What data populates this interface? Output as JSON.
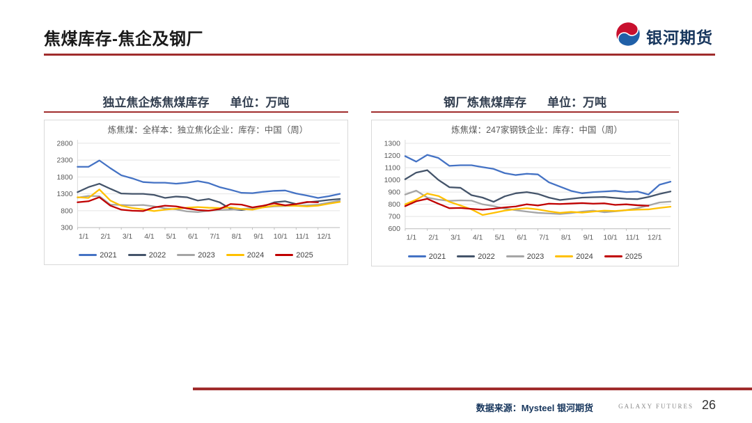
{
  "header": {
    "title": "焦煤库存-焦企及钢厂",
    "logo_text": "银河期货"
  },
  "footer": {
    "source": "数据来源：Mysteel 银河期货",
    "brand": "GALAXY FUTURES",
    "page_number": "26"
  },
  "colors": {
    "accent_red": "#A02C2C",
    "title_navy": "#333F50",
    "logo_navy": "#17365D",
    "logo_blue": "#2060A8",
    "logo_red": "#C8102E"
  },
  "chart_data": [
    {
      "type": "line",
      "section_title": "独立焦企炼焦煤库存",
      "unit_label": "单位：万吨",
      "title": "炼焦煤：全样本：独立焦化企业：库存：中国（周）",
      "ylabel": "万吨",
      "ylim": [
        300,
        2800
      ],
      "yticks": [
        300,
        800,
        1300,
        1800,
        2300,
        2800
      ],
      "x_tick_labels": [
        "1/1",
        "2/1",
        "3/1",
        "4/1",
        "5/1",
        "6/1",
        "7/1",
        "8/1",
        "9/1",
        "10/1",
        "11/1",
        "12/1"
      ],
      "x_months_range": [
        0,
        12
      ],
      "points_per_month": 2,
      "grid": true,
      "legend_position": "bottom",
      "series": [
        {
          "name": "2021",
          "color": "#4472C4",
          "values": [
            2100,
            2100,
            2290,
            2060,
            1850,
            1760,
            1650,
            1630,
            1630,
            1600,
            1630,
            1680,
            1620,
            1500,
            1420,
            1330,
            1320,
            1360,
            1390,
            1400,
            1310,
            1250,
            1180,
            1230,
            1300
          ]
        },
        {
          "name": "2022",
          "color": "#44546A",
          "values": [
            1350,
            1500,
            1600,
            1450,
            1310,
            1300,
            1300,
            1270,
            1180,
            1220,
            1200,
            1100,
            1150,
            1050,
            850,
            820,
            870,
            930,
            1050,
            1080,
            1000,
            1050,
            1080,
            1120,
            1150
          ]
        },
        {
          "name": "2023",
          "color": "#A5A5A5",
          "values": [
            1190,
            1240,
            1230,
            980,
            970,
            960,
            970,
            930,
            870,
            840,
            780,
            760,
            800,
            820,
            830,
            850,
            880,
            900,
            930,
            940,
            950,
            960,
            980,
            1040,
            1100
          ]
        },
        {
          "name": "2024",
          "color": "#FFC000",
          "values": [
            1200,
            1180,
            1430,
            1100,
            950,
            880,
            840,
            790,
            830,
            860,
            890,
            910,
            890,
            880,
            900,
            850,
            830,
            900,
            950,
            955,
            945,
            930,
            950,
            1010,
            1060
          ]
        },
        {
          "name": "2025",
          "color": "#C00000",
          "values": [
            1050,
            1080,
            1200,
            950,
            830,
            800,
            790,
            900,
            950,
            930,
            870,
            820,
            800,
            850,
            1000,
            980,
            900,
            950,
            1020,
            960,
            1000,
            1060,
            1050
          ]
        }
      ]
    },
    {
      "type": "line",
      "section_title": "钢厂炼焦煤库存",
      "unit_label": "单位：万吨",
      "title": "炼焦煤：247家钢铁企业：库存：中国（周）",
      "ylabel": "万吨",
      "ylim": [
        600,
        1300
      ],
      "yticks": [
        600,
        700,
        800,
        900,
        1000,
        1100,
        1200,
        1300
      ],
      "x_tick_labels": [
        "1/1",
        "2/1",
        "3/1",
        "4/1",
        "5/1",
        "6/1",
        "7/1",
        "8/1",
        "9/1",
        "10/1",
        "11/1",
        "12/1"
      ],
      "x_months_range": [
        0,
        12
      ],
      "points_per_month": 2,
      "grid": true,
      "legend_position": "bottom",
      "series": [
        {
          "name": "2021",
          "color": "#4472C4",
          "values": [
            1195,
            1150,
            1205,
            1180,
            1115,
            1120,
            1120,
            1105,
            1090,
            1055,
            1040,
            1050,
            1045,
            980,
            945,
            910,
            890,
            900,
            905,
            910,
            900,
            905,
            880,
            960,
            985
          ]
        },
        {
          "name": "2022",
          "color": "#44546A",
          "values": [
            1005,
            1060,
            1080,
            1000,
            940,
            935,
            875,
            855,
            820,
            865,
            890,
            900,
            885,
            855,
            835,
            845,
            855,
            858,
            860,
            852,
            845,
            842,
            860,
            885,
            905
          ]
        },
        {
          "name": "2023",
          "color": "#A5A5A5",
          "values": [
            880,
            912,
            855,
            838,
            828,
            832,
            830,
            800,
            785,
            765,
            752,
            740,
            730,
            725,
            720,
            728,
            740,
            748,
            735,
            742,
            752,
            768,
            790,
            815,
            822
          ]
        },
        {
          "name": "2024",
          "color": "#FFC000",
          "values": [
            800,
            838,
            888,
            868,
            820,
            790,
            758,
            712,
            730,
            748,
            760,
            768,
            758,
            742,
            730,
            738,
            732,
            740,
            748,
            745,
            752,
            756,
            758,
            770,
            780
          ]
        },
        {
          "name": "2025",
          "color": "#C00000",
          "values": [
            785,
            825,
            845,
            805,
            768,
            770,
            762,
            756,
            764,
            774,
            782,
            800,
            790,
            805,
            802,
            806,
            810,
            805,
            808,
            795,
            800,
            792,
            788
          ]
        }
      ]
    }
  ]
}
